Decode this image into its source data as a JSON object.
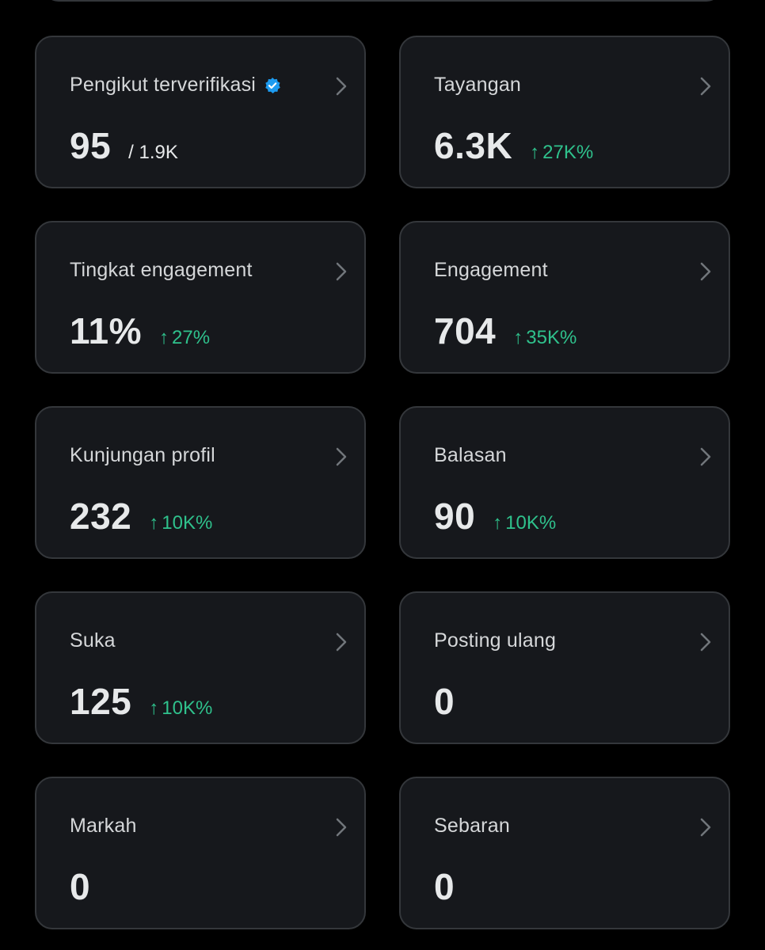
{
  "colors": {
    "background": "#000000",
    "card_background": "#16181c",
    "card_border": "#34373b",
    "text_primary": "#e7e9ea",
    "text_label": "#d5d7d9",
    "positive_change": "#2fc18c",
    "verified_badge": "#1d9bf0",
    "chevron": "#71767b"
  },
  "cards": [
    {
      "label": "Pengikut terverifikasi",
      "verified_icon": "verified-badge-icon",
      "value": "95",
      "total": "/ 1.9K",
      "change": ""
    },
    {
      "label": "Tayangan",
      "value": "6.3K",
      "change_arrow": "↑",
      "change": "27K%"
    },
    {
      "label": "Tingkat engagement",
      "value": "11%",
      "change_arrow": "↑",
      "change": "27%"
    },
    {
      "label": "Engagement",
      "value": "704",
      "change_arrow": "↑",
      "change": "35K%"
    },
    {
      "label": "Kunjungan profil",
      "value": "232",
      "change_arrow": "↑",
      "change": "10K%"
    },
    {
      "label": "Balasan",
      "value": "90",
      "change_arrow": "↑",
      "change": "10K%"
    },
    {
      "label": "Suka",
      "value": "125",
      "change_arrow": "↑",
      "change": "10K%"
    },
    {
      "label": "Posting ulang",
      "value": "0",
      "change": ""
    },
    {
      "label": "Markah",
      "value": "0",
      "change": ""
    },
    {
      "label": "Sebaran",
      "value": "0",
      "change": ""
    }
  ]
}
